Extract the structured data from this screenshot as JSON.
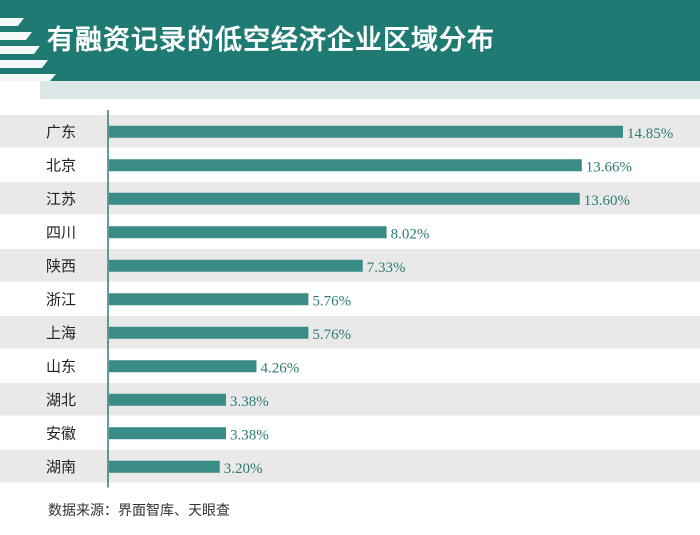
{
  "header": {
    "title": "有融资记录的低空经济企业区域分布"
  },
  "chart_data": {
    "type": "bar",
    "orientation": "horizontal",
    "categories": [
      "广东",
      "北京",
      "江苏",
      "四川",
      "陕西",
      "浙江",
      "上海",
      "山东",
      "湖北",
      "安徽",
      "湖南"
    ],
    "values": [
      14.85,
      13.66,
      13.6,
      8.02,
      7.33,
      5.76,
      5.76,
      4.26,
      3.38,
      3.38,
      3.2
    ],
    "value_labels": [
      "14.85%",
      "13.66%",
      "13.60%",
      "8.02%",
      "7.33%",
      "5.76%",
      "5.76%",
      "4.26%",
      "3.38%",
      "3.38%",
      "3.20%"
    ],
    "xlim": [
      0,
      16
    ],
    "grid": false,
    "colors": {
      "bar": "#3a8c86",
      "label": "#2c7a74",
      "row_band": "#e9e9e9",
      "axis": "#2f7f79"
    }
  },
  "footer": {
    "source": "数据来源：界面智库、天眼查"
  },
  "colors": {
    "header_bg": "#1f7a73",
    "subband": "#dce8e7"
  }
}
